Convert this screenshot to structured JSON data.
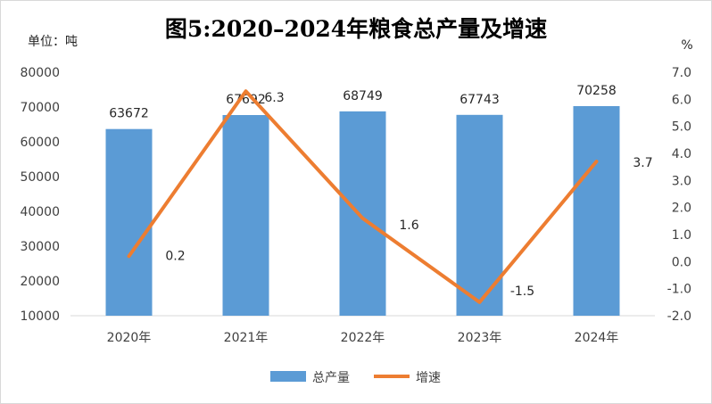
{
  "chart_data": {
    "type": "bar+line",
    "title": "图5:2020–2024年粮食总产量及增速",
    "left_axis_unit": "单位：吨",
    "right_axis_unit": "%",
    "categories": [
      "2020年",
      "2021年",
      "2022年",
      "2023年",
      "2024年"
    ],
    "series": [
      {
        "name": "总产量",
        "type": "bar",
        "axis": "left",
        "color": "#5b9bd5",
        "values": [
          63672,
          67692,
          68749,
          67743,
          70258
        ]
      },
      {
        "name": "增速",
        "type": "line",
        "axis": "right",
        "color": "#ed7d31",
        "values": [
          0.2,
          6.3,
          1.6,
          -1.5,
          3.7
        ]
      }
    ],
    "left_axis": {
      "min": 10000,
      "max": 80000,
      "step": 10000,
      "ticks": [
        "10000",
        "20000",
        "30000",
        "40000",
        "50000",
        "60000",
        "70000",
        "80000"
      ]
    },
    "right_axis": {
      "min": -2.0,
      "max": 7.0,
      "step": 1.0,
      "ticks": [
        "-2.0",
        "-1.0",
        "0.0",
        "1.0",
        "2.0",
        "3.0",
        "4.0",
        "5.0",
        "6.0",
        "7.0"
      ]
    },
    "bar_labels": [
      "63672",
      "67692",
      "68749",
      "67743",
      "70258"
    ],
    "line_labels": [
      "0.2",
      "6.3",
      "1.6",
      "-1.5",
      "3.7"
    ],
    "grid": false,
    "legend_position": "bottom"
  }
}
